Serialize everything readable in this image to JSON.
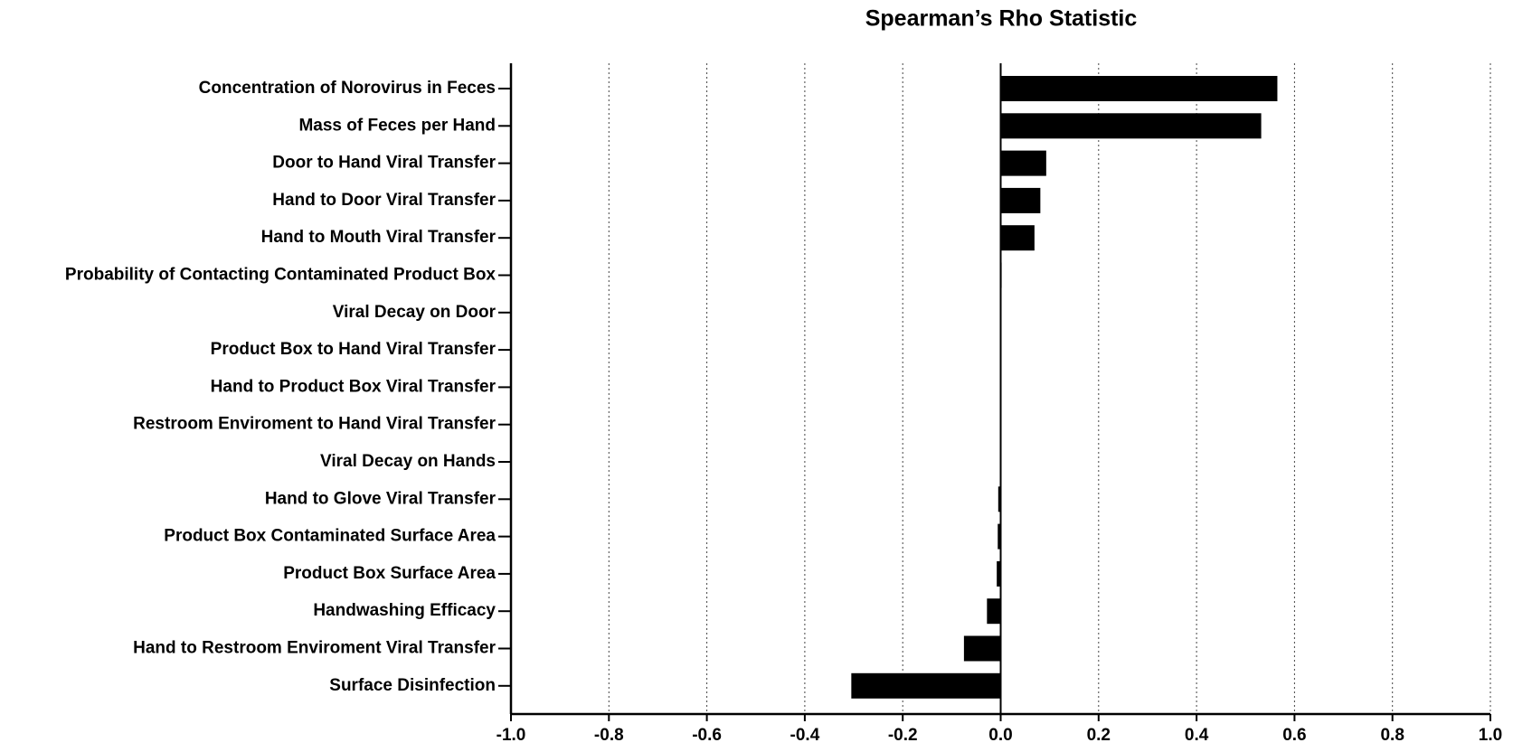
{
  "chart_data": {
    "type": "bar",
    "orientation": "horizontal",
    "title": "Spearman’s Rho Statistic",
    "categories": [
      "Concentration of Norovirus in Feces",
      "Mass of Feces per Hand",
      "Door to Hand Viral Transfer",
      "Hand to Door Viral Transfer",
      "Hand to Mouth Viral Transfer",
      "Probability of Contacting Contaminated Product Box",
      "Viral Decay on Door",
      "Product Box to Hand Viral Transfer",
      "Hand to Product Box Viral Transfer",
      "Restroom Enviroment to Hand Viral Transfer",
      "Viral Decay on Hands",
      "Hand to Glove Viral Transfer",
      "Product Box Contaminated Surface Area",
      "Product Box Surface Area",
      "Handwashing Efficacy",
      "Hand to Restroom Enviroment Viral Transfer",
      "Surface Disinfection"
    ],
    "values": [
      0.565,
      0.532,
      0.093,
      0.081,
      0.069,
      0.002,
      0.001,
      0,
      0,
      0,
      0,
      -0.005,
      -0.006,
      -0.008,
      -0.028,
      -0.075,
      -0.305
    ],
    "color": "#000000",
    "xlim": [
      -1.0,
      1.0
    ],
    "xticks": [
      {
        "value": -1.0,
        "label": "-1.0"
      },
      -0.8,
      -0.6,
      -0.4,
      -0.2,
      {
        "value": 0,
        "label": "0.0"
      },
      0.2,
      0.4,
      0.6,
      0.8,
      {
        "value": 1.0,
        "label": "1.0"
      }
    ],
    "grid": true
  }
}
